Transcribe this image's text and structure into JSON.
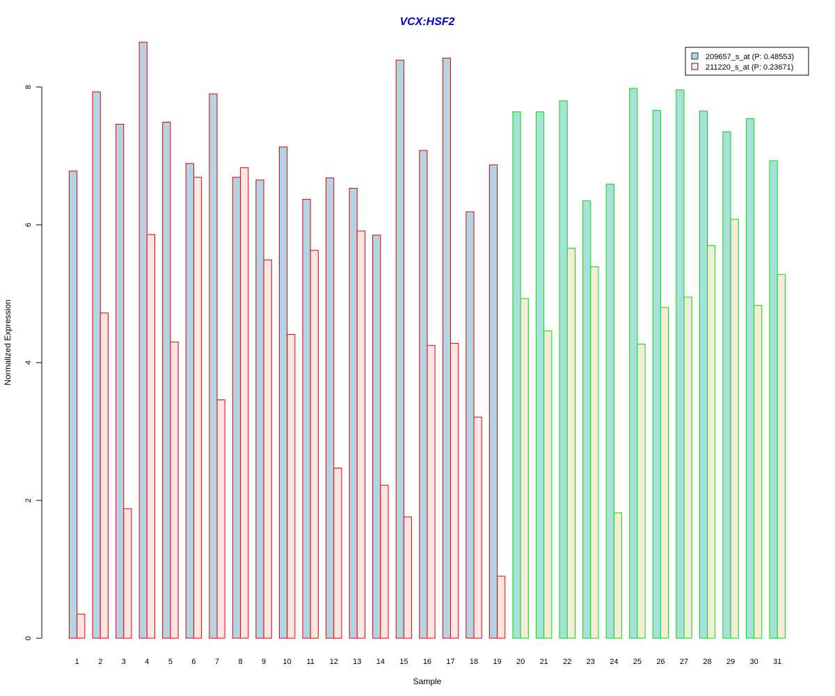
{
  "chart_data": {
    "type": "bar",
    "title": "VCX:HSF2",
    "xlabel": "Sample",
    "ylabel": "Normalized Expression",
    "ylim": [
      0,
      8.8
    ],
    "yticks": [
      0,
      2,
      4,
      6,
      8
    ],
    "grid": false,
    "legend_position": "top-right",
    "categories": [
      "1",
      "2",
      "3",
      "4",
      "5",
      "6",
      "7",
      "8",
      "9",
      "10",
      "11",
      "12",
      "13",
      "14",
      "15",
      "16",
      "17",
      "18",
      "19",
      "20",
      "21",
      "22",
      "23",
      "24",
      "25",
      "26",
      "27",
      "28",
      "29",
      "30",
      "31"
    ],
    "series": [
      {
        "name": "209657_s_at (P: 0.48553)",
        "values": [
          6.78,
          7.93,
          7.46,
          8.65,
          7.49,
          6.89,
          7.9,
          6.69,
          6.65,
          7.13,
          6.37,
          6.68,
          6.53,
          5.85,
          8.39,
          7.08,
          8.42,
          6.19,
          6.87,
          7.64,
          7.64,
          7.8,
          6.35,
          6.59,
          7.98,
          7.66,
          7.96,
          7.65,
          7.35,
          7.54,
          6.93
        ]
      },
      {
        "name": "211220_s_at (P: 0.23671)",
        "values": [
          0.35,
          4.72,
          1.88,
          5.86,
          4.3,
          6.69,
          3.46,
          6.83,
          5.49,
          4.41,
          5.63,
          2.47,
          5.91,
          2.22,
          1.76,
          4.25,
          4.28,
          3.21,
          0.9,
          4.93,
          4.46,
          5.66,
          5.39,
          1.82,
          4.27,
          4.8,
          4.95,
          5.7,
          6.08,
          4.83,
          5.28
        ]
      }
    ],
    "groups": [
      {
        "samples": [
          1,
          19
        ],
        "border_color": "#dd0000"
      },
      {
        "samples": [
          20,
          31
        ],
        "border_color": "#00dd00"
      }
    ],
    "colors": {
      "series1_fill_group1": "#b4d4e4",
      "series2_fill_group1": "#ffe4e1",
      "series1_fill_group2": "#a8e0dc",
      "series2_fill_group2": "#f3ecd9",
      "title": "#0000cc"
    }
  }
}
